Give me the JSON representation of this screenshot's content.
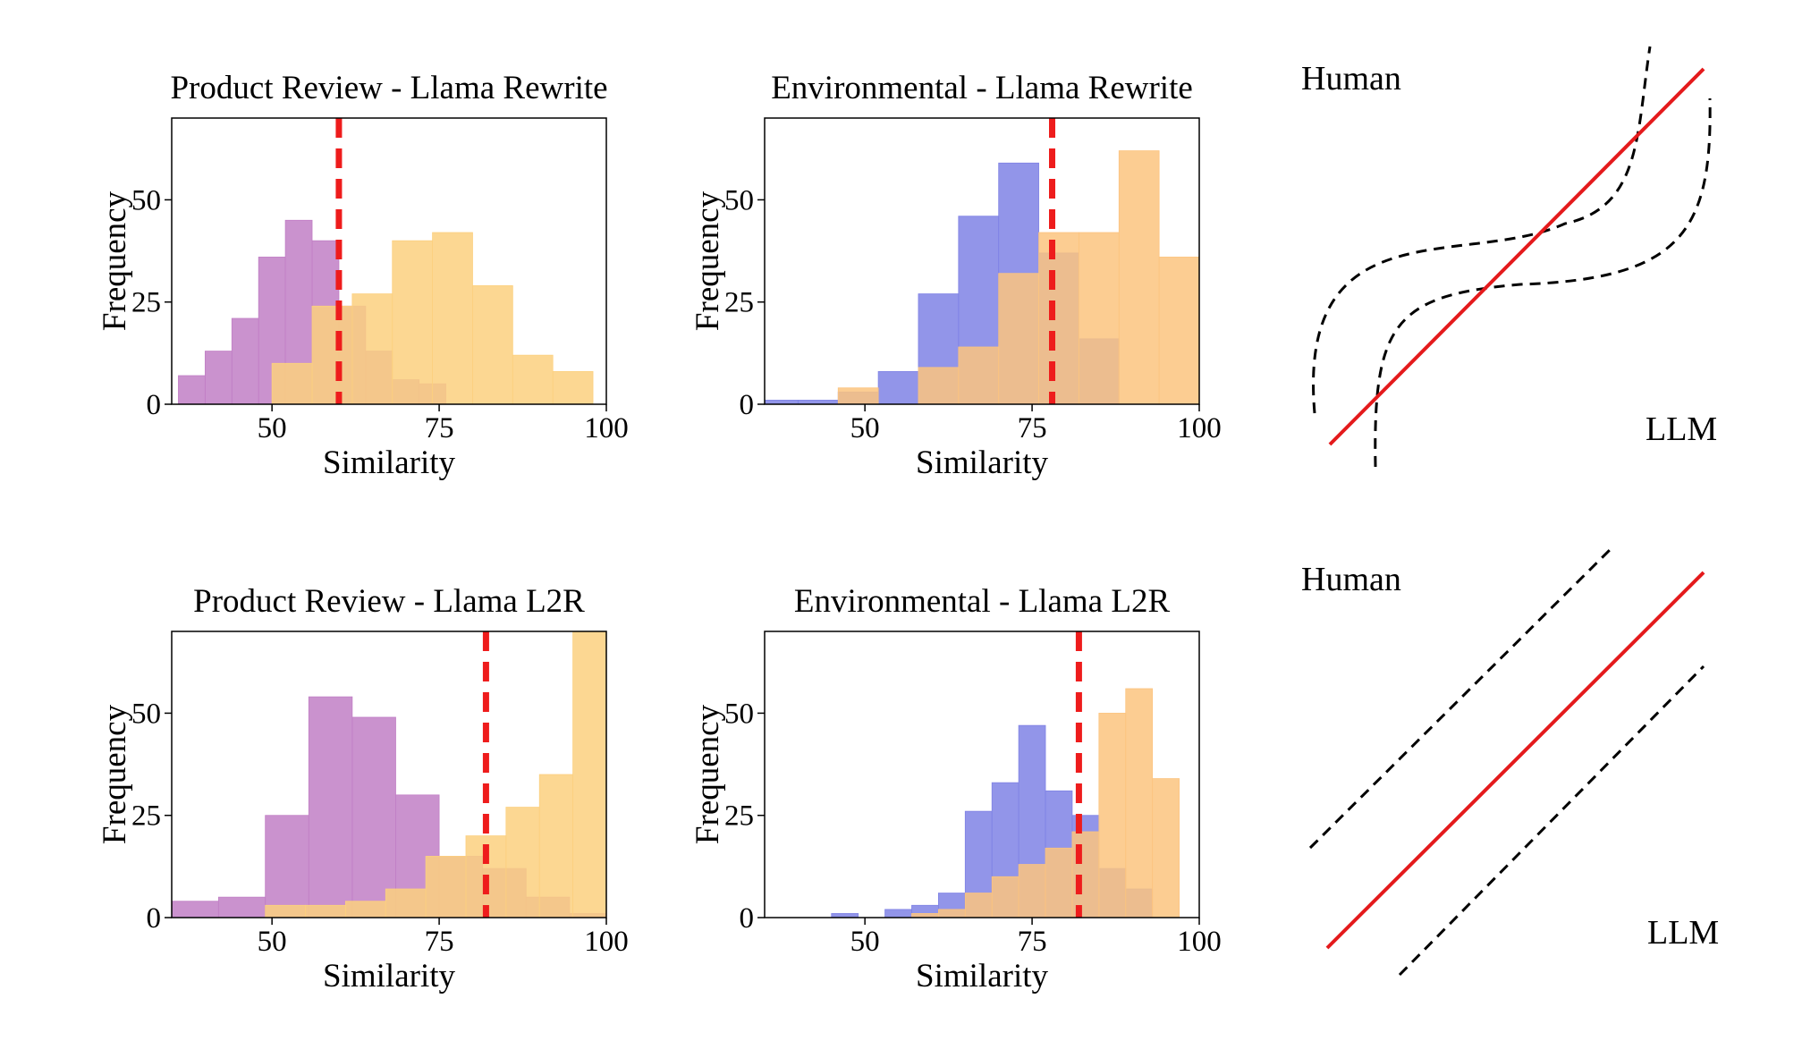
{
  "chart_data": [
    {
      "type": "histogram",
      "title": "Product Review - Llama Rewrite",
      "xlabel": "Similarity",
      "ylabel": "Frequency",
      "xlim": [
        35,
        100
      ],
      "ylim": [
        0,
        70
      ],
      "xticks": [
        50,
        75,
        100
      ],
      "yticks": [
        0,
        25,
        50
      ],
      "threshold": 60,
      "series": [
        {
          "name": "Human",
          "color": "#c17fc5",
          "bins": [
            [
              36,
              40,
              7
            ],
            [
              40,
              44,
              13
            ],
            [
              44,
              48,
              21
            ],
            [
              48,
              52,
              36
            ],
            [
              52,
              56,
              45
            ],
            [
              56,
              60,
              40
            ],
            [
              60,
              64,
              24
            ],
            [
              64,
              68,
              13
            ],
            [
              68,
              72,
              6
            ],
            [
              72,
              76,
              5
            ],
            [
              76,
              80,
              0
            ],
            [
              80,
              84,
              0
            ],
            [
              84,
              88,
              0
            ],
            [
              88,
              92,
              0
            ],
            [
              92,
              96,
              0
            ]
          ]
        },
        {
          "name": "LLM",
          "color": "#fcd07f",
          "bins": [
            [
              50,
              56,
              10
            ],
            [
              56,
              62,
              24
            ],
            [
              62,
              68,
              27
            ],
            [
              68,
              74,
              40
            ],
            [
              74,
              80,
              42
            ],
            [
              80,
              86,
              29
            ],
            [
              86,
              92,
              12
            ],
            [
              92,
              98,
              8
            ]
          ]
        }
      ]
    },
    {
      "type": "histogram",
      "title": "Environmental - Llama Rewrite",
      "xlabel": "Similarity",
      "ylabel": "Frequency",
      "xlim": [
        35,
        100
      ],
      "ylim": [
        0,
        70
      ],
      "xticks": [
        50,
        75,
        100
      ],
      "yticks": [
        0,
        25,
        50
      ],
      "threshold": 78,
      "series": [
        {
          "name": "Human",
          "color": "#7f82e5",
          "bins": [
            [
              35,
              40,
              1
            ],
            [
              40,
              46,
              1
            ],
            [
              46,
              52,
              3
            ],
            [
              52,
              58,
              8
            ],
            [
              58,
              64,
              27
            ],
            [
              64,
              70,
              46
            ],
            [
              70,
              76,
              59
            ],
            [
              76,
              82,
              37
            ],
            [
              82,
              88,
              16
            ],
            [
              88,
              94,
              0
            ]
          ]
        },
        {
          "name": "LLM",
          "color": "#fcc47f",
          "bins": [
            [
              46,
              52,
              4
            ],
            [
              52,
              58,
              0
            ],
            [
              58,
              64,
              9
            ],
            [
              64,
              70,
              14
            ],
            [
              70,
              76,
              32
            ],
            [
              76,
              82,
              42
            ],
            [
              82,
              88,
              42
            ],
            [
              88,
              94,
              62
            ],
            [
              94,
              100,
              36
            ]
          ]
        }
      ]
    },
    {
      "type": "histogram",
      "title": "Product Review - Llama L2R",
      "xlabel": "Similarity",
      "ylabel": "Frequency",
      "xlim": [
        35,
        100
      ],
      "ylim": [
        0,
        70
      ],
      "xticks": [
        50,
        75,
        100
      ],
      "yticks": [
        0,
        25,
        50
      ],
      "threshold": 82,
      "series": [
        {
          "name": "Human",
          "color": "#c17fc5",
          "bins": [
            [
              35,
              42,
              4
            ],
            [
              42,
              49,
              5
            ],
            [
              49,
              55.5,
              25
            ],
            [
              55.5,
              62,
              54
            ],
            [
              62,
              68.5,
              49
            ],
            [
              68.5,
              75,
              30
            ],
            [
              75,
              81.5,
              15
            ],
            [
              81.5,
              88,
              12
            ],
            [
              88,
              94.5,
              5
            ],
            [
              94.5,
              100,
              1
            ]
          ]
        },
        {
          "name": "LLM",
          "color": "#fcd07f",
          "bins": [
            [
              49,
              55,
              3
            ],
            [
              55,
              61,
              3
            ],
            [
              61,
              67,
              4
            ],
            [
              67,
              73,
              7
            ],
            [
              73,
              79,
              15
            ],
            [
              79,
              85,
              20
            ],
            [
              85,
              90,
              27
            ],
            [
              90,
              95,
              35
            ],
            [
              95,
              100,
              70
            ]
          ]
        }
      ]
    },
    {
      "type": "histogram",
      "title": "Environmental - Llama L2R",
      "xlabel": "Similarity",
      "ylabel": "Frequency",
      "xlim": [
        35,
        100
      ],
      "ylim": [
        0,
        70
      ],
      "xticks": [
        50,
        75,
        100
      ],
      "yticks": [
        0,
        25,
        50
      ],
      "threshold": 82,
      "series": [
        {
          "name": "Human",
          "color": "#7f82e5",
          "bins": [
            [
              45,
              49,
              1
            ],
            [
              49,
              53,
              0
            ],
            [
              53,
              57,
              2
            ],
            [
              57,
              61,
              3
            ],
            [
              61,
              65,
              6
            ],
            [
              65,
              69,
              26
            ],
            [
              69,
              73,
              33
            ],
            [
              73,
              77,
              47
            ],
            [
              77,
              81,
              31
            ],
            [
              81,
              85,
              25
            ],
            [
              85,
              89,
              12
            ],
            [
              89,
              93,
              7
            ]
          ]
        },
        {
          "name": "LLM",
          "color": "#fcc47f",
          "bins": [
            [
              57,
              61,
              1
            ],
            [
              61,
              65,
              2
            ],
            [
              65,
              69,
              6
            ],
            [
              69,
              73,
              10
            ],
            [
              73,
              77,
              13
            ],
            [
              77,
              81,
              17
            ],
            [
              81,
              85,
              21
            ],
            [
              85,
              89,
              50
            ],
            [
              89,
              93,
              56
            ],
            [
              93,
              97,
              34
            ]
          ]
        }
      ]
    }
  ],
  "diagrams": [
    {
      "label_top": "Human",
      "label_bottom": "LLM",
      "style": "sigmoid"
    },
    {
      "label_top": "Human",
      "label_bottom": "LLM",
      "style": "parallel"
    }
  ],
  "colors": {
    "threshold": "#ee1c1c",
    "diagram_line": "#e41a1c",
    "dashed": "#000000"
  }
}
